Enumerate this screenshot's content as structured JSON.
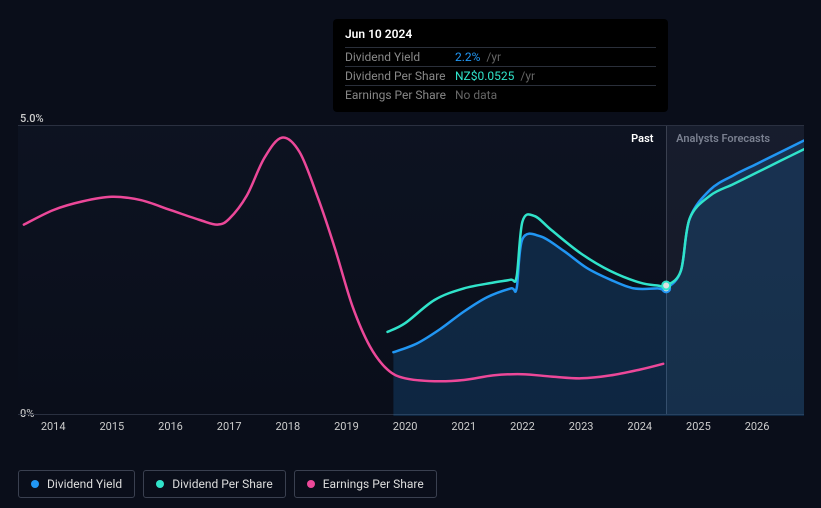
{
  "tooltip": {
    "date": "Jun 10 2024",
    "rows": [
      {
        "label": "Dividend Yield",
        "value": "2.2%",
        "unit": "/yr",
        "color": "#2196f3"
      },
      {
        "label": "Dividend Per Share",
        "value": "NZ$0.0525",
        "unit": "/yr",
        "color": "#30e3ca"
      },
      {
        "label": "Earnings Per Share",
        "value": "No data",
        "unit": "",
        "color": "#666"
      }
    ]
  },
  "chart": {
    "type": "line",
    "background_color": "#0a0e1a",
    "plot_bg": "rgba(20,30,50,0.3)",
    "grid_color": "#2a3040",
    "ylim": [
      0,
      5
    ],
    "ylabels": [
      {
        "v": 5,
        "text": "5.0%"
      },
      {
        "v": 0,
        "text": "0%"
      }
    ],
    "xlim": [
      2013.4,
      2026.8
    ],
    "xticks": [
      2014,
      2015,
      2016,
      2017,
      2018,
      2019,
      2020,
      2021,
      2022,
      2023,
      2024,
      2025,
      2026
    ],
    "past_label": "Past",
    "forecast_label": "Analysts Forecasts",
    "forecast_start": 2024.45,
    "tracker_x": 2024.45,
    "series": [
      {
        "name": "Dividend Yield",
        "color": "#2196f3",
        "fill": "rgba(33,150,243,0.18)",
        "width": 2.5,
        "fill_area": true,
        "data": [
          [
            2019.8,
            1.1
          ],
          [
            2020.2,
            1.25
          ],
          [
            2020.6,
            1.5
          ],
          [
            2021.0,
            1.8
          ],
          [
            2021.4,
            2.05
          ],
          [
            2021.8,
            2.2
          ],
          [
            2021.9,
            2.2
          ],
          [
            2022.0,
            3.05
          ],
          [
            2022.3,
            3.1
          ],
          [
            2022.7,
            2.85
          ],
          [
            2023.1,
            2.55
          ],
          [
            2023.5,
            2.35
          ],
          [
            2023.9,
            2.2
          ],
          [
            2024.3,
            2.2
          ],
          [
            2024.45,
            2.2
          ],
          [
            2024.7,
            2.5
          ],
          [
            2024.85,
            3.4
          ],
          [
            2025.2,
            3.9
          ],
          [
            2025.6,
            4.15
          ],
          [
            2026.0,
            4.35
          ],
          [
            2026.4,
            4.55
          ],
          [
            2026.8,
            4.75
          ]
        ],
        "marker": {
          "x": 2024.45,
          "y": 2.2
        }
      },
      {
        "name": "Dividend Per Share",
        "color": "#30e3ca",
        "width": 2.5,
        "fill_area": false,
        "data": [
          [
            2019.7,
            1.45
          ],
          [
            2020.0,
            1.6
          ],
          [
            2020.5,
            2.0
          ],
          [
            2021.0,
            2.2
          ],
          [
            2021.5,
            2.3
          ],
          [
            2021.8,
            2.35
          ],
          [
            2021.9,
            2.4
          ],
          [
            2022.0,
            3.35
          ],
          [
            2022.2,
            3.45
          ],
          [
            2022.5,
            3.2
          ],
          [
            2023.0,
            2.8
          ],
          [
            2023.5,
            2.5
          ],
          [
            2024.0,
            2.3
          ],
          [
            2024.3,
            2.25
          ],
          [
            2024.45,
            2.25
          ],
          [
            2024.7,
            2.5
          ],
          [
            2024.85,
            3.4
          ],
          [
            2025.2,
            3.8
          ],
          [
            2025.6,
            4.0
          ],
          [
            2026.0,
            4.2
          ],
          [
            2026.4,
            4.4
          ],
          [
            2026.8,
            4.6
          ]
        ],
        "marker": {
          "x": 2024.45,
          "y": 2.25
        }
      },
      {
        "name": "Earnings Per Share",
        "color": "#ec4899",
        "width": 2.5,
        "fill_area": false,
        "data": [
          [
            2013.5,
            3.3
          ],
          [
            2014.0,
            3.55
          ],
          [
            2014.5,
            3.7
          ],
          [
            2015.0,
            3.78
          ],
          [
            2015.5,
            3.72
          ],
          [
            2016.0,
            3.55
          ],
          [
            2016.5,
            3.38
          ],
          [
            2016.8,
            3.3
          ],
          [
            2017.0,
            3.4
          ],
          [
            2017.3,
            3.8
          ],
          [
            2017.6,
            4.45
          ],
          [
            2017.9,
            4.8
          ],
          [
            2018.2,
            4.55
          ],
          [
            2018.5,
            3.8
          ],
          [
            2018.8,
            2.9
          ],
          [
            2019.1,
            1.9
          ],
          [
            2019.4,
            1.2
          ],
          [
            2019.7,
            0.8
          ],
          [
            2020.0,
            0.65
          ],
          [
            2020.5,
            0.6
          ],
          [
            2021.0,
            0.62
          ],
          [
            2021.5,
            0.7
          ],
          [
            2022.0,
            0.72
          ],
          [
            2022.5,
            0.68
          ],
          [
            2023.0,
            0.65
          ],
          [
            2023.5,
            0.7
          ],
          [
            2024.0,
            0.8
          ],
          [
            2024.4,
            0.9
          ]
        ]
      }
    ],
    "legend": [
      {
        "label": "Dividend Yield",
        "color": "#2196f3"
      },
      {
        "label": "Dividend Per Share",
        "color": "#30e3ca"
      },
      {
        "label": "Earnings Per Share",
        "color": "#ec4899"
      }
    ]
  }
}
